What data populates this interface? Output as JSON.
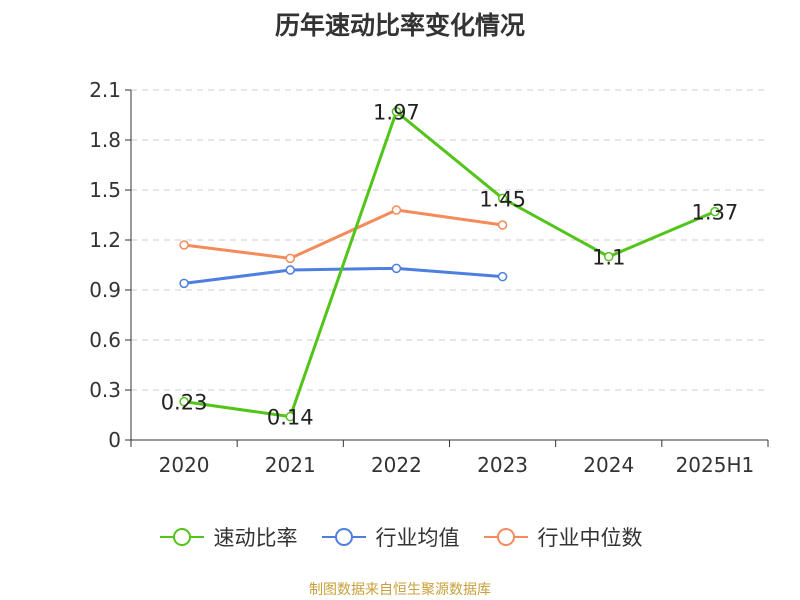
{
  "title": "历年速动比率变化情况",
  "source": "制图数据来自恒生聚源数据库",
  "colors": {
    "quick_ratio": "#52c41a",
    "industry_avg": "#4e7fe0",
    "industry_median": "#f58b5a",
    "grid": "#cccccc",
    "axis": "#333333"
  },
  "chart_data": {
    "type": "line",
    "title": "历年速动比率变化情况",
    "categories": [
      "2020",
      "2021",
      "2022",
      "2023",
      "2024",
      "2025H1"
    ],
    "ylim": [
      0,
      2.1
    ],
    "yticks": [
      "0",
      "0.3",
      "0.6",
      "0.9",
      "1.2",
      "1.5",
      "1.8",
      "2.1"
    ],
    "grid": true,
    "legend_position": "bottom",
    "series": [
      {
        "name": "速动比率",
        "key": "quick_ratio",
        "values": [
          0.23,
          0.14,
          1.97,
          1.45,
          1.1,
          1.37
        ],
        "labels": [
          "0.23",
          "0.14",
          "1.97",
          "1.45",
          "1.1",
          "1.37"
        ]
      },
      {
        "name": "行业均值",
        "key": "industry_avg",
        "values": [
          0.94,
          1.02,
          1.03,
          0.98,
          null,
          null
        ]
      },
      {
        "name": "行业中位数",
        "key": "industry_median",
        "values": [
          1.17,
          1.09,
          1.38,
          1.29,
          null,
          null
        ]
      }
    ]
  }
}
